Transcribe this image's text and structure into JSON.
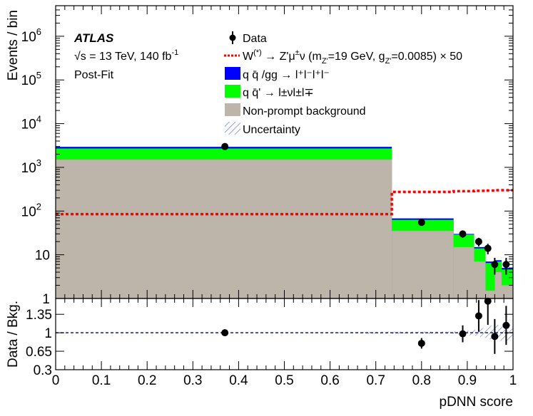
{
  "chart_data": [
    {
      "type": "bar",
      "panel": "main",
      "ylabel": "Events / bin",
      "yscale": "log",
      "ylim": [
        1,
        5000000
      ],
      "y_ticks": [
        {
          "v": 1,
          "label": "1"
        },
        {
          "v": 10,
          "label": "10"
        },
        {
          "v": 100,
          "label": "10",
          "exp": "2"
        },
        {
          "v": 1000,
          "label": "10",
          "exp": "3"
        },
        {
          "v": 10000,
          "label": "10",
          "exp": "4"
        },
        {
          "v": 100000,
          "label": "10",
          "exp": "5"
        },
        {
          "v": 1000000,
          "label": "10",
          "exp": "6"
        }
      ],
      "bins": [
        [
          0.0,
          0.735
        ],
        [
          0.735,
          0.87
        ],
        [
          0.87,
          0.915
        ],
        [
          0.915,
          0.94
        ],
        [
          0.94,
          0.96
        ],
        [
          0.96,
          0.975
        ],
        [
          0.975,
          1.0
        ]
      ],
      "stack": [
        {
          "name": "Non-prompt background",
          "color": "#bdb5aa",
          "values": [
            1500,
            35,
            15,
            7,
            1.5,
            4,
            2
          ]
        },
        {
          "name": "q q̄' → l±νl±l∓",
          "color": "#00ff00",
          "values": [
            2700,
            63,
            29,
            14,
            6.5,
            7,
            4.6
          ]
        },
        {
          "name": "q q̄ /gg → l+l−l+l−",
          "color": "#0000ff",
          "values": [
            2950,
            68,
            30,
            15,
            7,
            7.5,
            5
          ]
        }
      ],
      "signal": {
        "name": "W(*) → Z'μ±ν (mZ'=19 GeV, gZ'=0.0085) × 50",
        "color": "#ff0000",
        "values": [
          85,
          275,
          285,
          290,
          295,
          300,
          300
        ]
      },
      "data_points": {
        "name": "Data",
        "x": [
          0.37,
          0.8,
          0.89,
          0.925,
          0.945,
          0.96,
          0.985
        ],
        "y": [
          3000,
          55,
          30,
          20,
          14,
          6,
          6
        ],
        "err": [
          55,
          7.5,
          5.5,
          4.5,
          3.8,
          2.5,
          2.5
        ]
      },
      "legend": {
        "data": "Data",
        "signal_pre": "W",
        "signal_sup": "(*)",
        "signal_mid": " → Z'μ",
        "signal_pm": "±",
        "signal_nu": "ν (m",
        "signal_sub1": "Z'",
        "signal_m": "=19 GeV, g",
        "signal_sub2": "Z'",
        "signal_end": "=0.0085) × 50",
        "qqgg": "q q̄ /gg → l⁺l⁻l⁺l⁻",
        "qqp": "q q̄' → l±νl±l∓",
        "nonprompt": "Non-prompt background",
        "unc": "Uncertainty"
      },
      "annotations": {
        "atlas": "ATLAS",
        "sqrts": "√s = 13 TeV, 140 fb",
        "lumi_exp": "-1",
        "postfit": "Post-Fit"
      }
    },
    {
      "type": "scatter",
      "panel": "ratio",
      "ylabel": "Data / Bkg.",
      "xlabel": "pDNN score",
      "xlim": [
        0,
        1
      ],
      "ylim": [
        0.3,
        1.65
      ],
      "x_ticks": [
        "0",
        "0.1",
        "0.2",
        "0.3",
        "0.4",
        "0.5",
        "0.6",
        "0.7",
        "0.8",
        "0.9",
        "1"
      ],
      "y_ticks": [
        "0.3",
        "0.65",
        "1",
        "1.35"
      ],
      "points": {
        "x": [
          0.37,
          0.8,
          0.89,
          0.925,
          0.945,
          0.96,
          0.985
        ],
        "y": [
          1.0,
          0.8,
          0.98,
          1.32,
          1.6,
          0.93,
          1.14
        ],
        "err": [
          0.02,
          0.1,
          0.16,
          0.3,
          0.45,
          0.33,
          0.37
        ]
      },
      "unc_band": [
        0.0,
        0.02,
        0.02,
        0.05,
        0.1,
        0.15,
        0.15,
        0.15
      ]
    }
  ],
  "colors": {
    "signal": "#ff0000",
    "band": "#2e3fc4",
    "ref": "#1a1a80"
  }
}
